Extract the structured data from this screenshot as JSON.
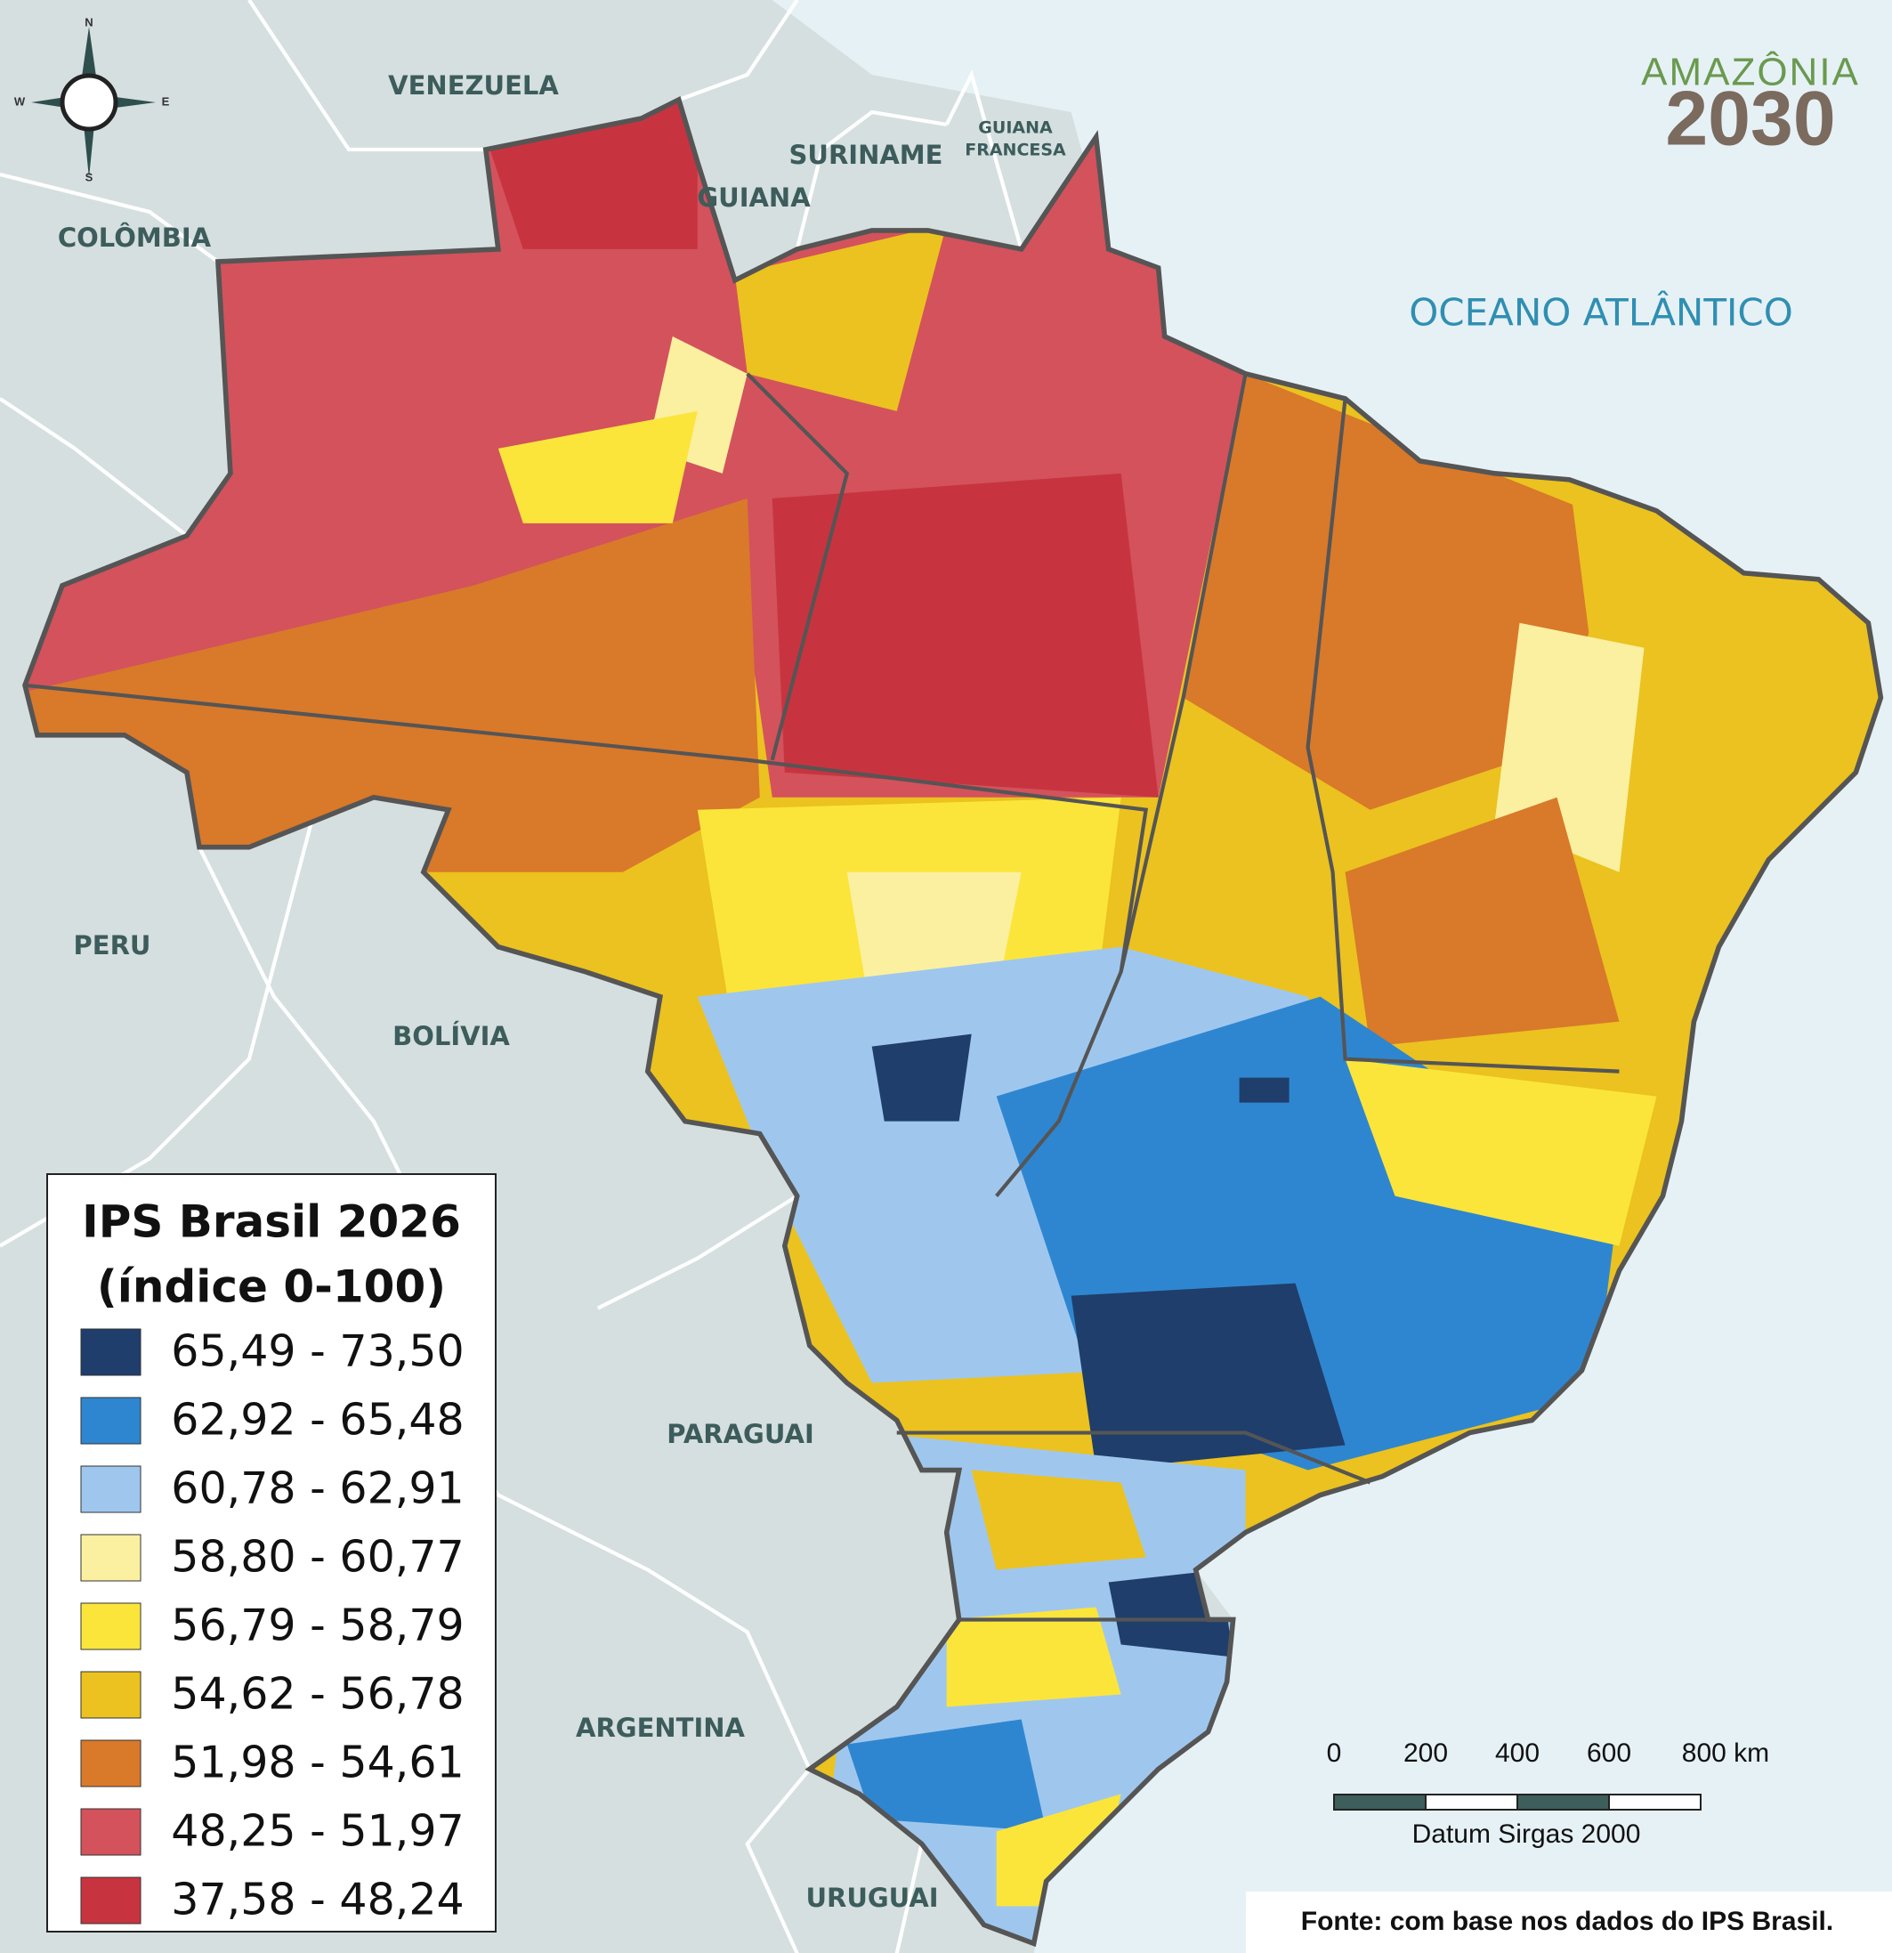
{
  "map": {
    "compass": {
      "n": "N",
      "w": "W",
      "e": "E",
      "s": "S"
    },
    "countries": [
      "VENEZUELA",
      "COLÔMBIA",
      "SURINAME",
      "GUIANA",
      "GUIANA",
      "FRANCESA",
      "PERU",
      "BOLÍVIA",
      "PARAGUAI",
      "ARGENTINA",
      "URUGUAI"
    ],
    "ocean": "OCEANO ATLÂNTICO",
    "logo": {
      "line1": "AMAZÔNIA",
      "line2": "2030"
    },
    "legend": {
      "title_lines": [
        "IPS Brasil 2026",
        "(índice 0-100)"
      ],
      "classes": [
        {
          "label": "65,49 - 73,50",
          "color": "#1f3e6b"
        },
        {
          "label": "62,92 - 65,48",
          "color": "#2f86d0"
        },
        {
          "label": "60,78 - 62,91",
          "color": "#9fc7ee"
        },
        {
          "label": "58,80 - 60,77",
          "color": "#fbf0a0"
        },
        {
          "label": "56,79 - 58,79",
          "color": "#fbe53b"
        },
        {
          "label": "54,62 - 56,78",
          "color": "#ebc21f"
        },
        {
          "label": "51,98 - 54,61",
          "color": "#d9792a"
        },
        {
          "label": "48,25 - 51,97",
          "color": "#d3525c"
        },
        {
          "label": "37,58 - 48,24",
          "color": "#c7343f"
        }
      ]
    },
    "scale_bar": {
      "labels": [
        "0",
        "200",
        "400",
        "600",
        "800 km"
      ],
      "datum": "Datum Sirgas 2000"
    },
    "source": "Fonte: com base nos dados do IPS Brasil."
  }
}
